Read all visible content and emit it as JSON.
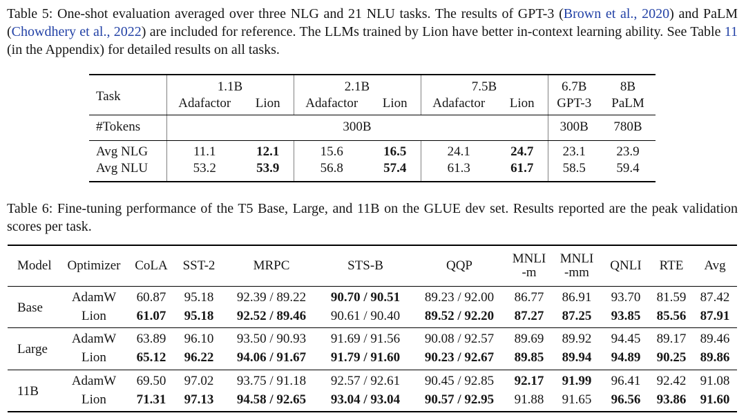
{
  "colors": {
    "link_blue": "#2342a6",
    "text": "#161616",
    "rule": "#000000",
    "divider_gray": "#808080"
  },
  "caption_table5": {
    "segments": [
      {
        "text": "Table 5: One-shot evaluation averaged over three NLG and 21 NLU tasks. The results of GPT-3 (",
        "link": false
      },
      {
        "text": "Brown et al., 2020",
        "link": true
      },
      {
        "text": ") and PaLM (",
        "link": false
      },
      {
        "text": "Chowdhery et al., 2022",
        "link": true
      },
      {
        "text": ") are included for reference. The LLMs trained by Lion have better in-context learning ability. See Table ",
        "link": false
      },
      {
        "text": "11",
        "link": true
      },
      {
        "text": " (in the Appendix) for detailed results on all tasks.",
        "link": false
      }
    ]
  },
  "table5": {
    "task_label": "Task",
    "header_groups": [
      {
        "size": "1.1B",
        "cols": [
          "Adafactor",
          "Lion"
        ]
      },
      {
        "size": "2.1B",
        "cols": [
          "Adafactor",
          "Lion"
        ]
      },
      {
        "size": "7.5B",
        "cols": [
          "Adafactor",
          "Lion"
        ]
      },
      {
        "size": "6.7B",
        "cols": [
          "GPT-3"
        ]
      },
      {
        "size": "8B",
        "cols": [
          "PaLM"
        ]
      }
    ],
    "tokens_row": {
      "label": "#Tokens",
      "span_value": "300B",
      "gpt3": "300B",
      "palm": "780B"
    },
    "rows": [
      {
        "label": "Avg NLG",
        "values": [
          "11.1",
          "12.1",
          "15.6",
          "16.5",
          "24.1",
          "24.7",
          "23.1",
          "23.9"
        ],
        "bold": [
          false,
          true,
          false,
          true,
          false,
          true,
          false,
          false
        ]
      },
      {
        "label": "Avg NLU",
        "values": [
          "53.2",
          "53.9",
          "56.8",
          "57.4",
          "61.3",
          "61.7",
          "58.5",
          "59.4"
        ],
        "bold": [
          false,
          true,
          false,
          true,
          false,
          true,
          false,
          false
        ]
      }
    ]
  },
  "caption_table6": {
    "segments": [
      {
        "text": "Table 6: Fine-tuning performance of the T5 Base, Large, and 11B on the GLUE dev set. Results reported are the peak validation scores per task.",
        "link": false
      }
    ]
  },
  "table6": {
    "columns": [
      {
        "line1": "Model"
      },
      {
        "line1": "Optimizer"
      },
      {
        "line1": "CoLA"
      },
      {
        "line1": "SST-2"
      },
      {
        "line1": "MRPC"
      },
      {
        "line1": "STS-B"
      },
      {
        "line1": "QQP"
      },
      {
        "line1": "MNLI",
        "line2": "-m"
      },
      {
        "line1": "MNLI",
        "line2": "-mm"
      },
      {
        "line1": "QNLI"
      },
      {
        "line1": "RTE"
      },
      {
        "line1": "Avg"
      }
    ],
    "groups": [
      {
        "model": "Base",
        "rows": [
          {
            "optimizer": "AdamW",
            "values": [
              "60.87",
              "95.18",
              "92.39 / 89.22",
              "90.70 / 90.51",
              "89.23 / 92.00",
              "86.77",
              "86.91",
              "93.70",
              "81.59",
              "87.42"
            ],
            "bold": [
              false,
              false,
              false,
              true,
              false,
              false,
              false,
              false,
              false,
              false
            ]
          },
          {
            "optimizer": "Lion",
            "values": [
              "61.07",
              "95.18",
              "92.52 / 89.46",
              "90.61 / 90.40",
              "89.52 / 92.20",
              "87.27",
              "87.25",
              "93.85",
              "85.56",
              "87.91"
            ],
            "bold": [
              true,
              true,
              true,
              false,
              true,
              true,
              true,
              true,
              true,
              true
            ]
          }
        ]
      },
      {
        "model": "Large",
        "rows": [
          {
            "optimizer": "AdamW",
            "values": [
              "63.89",
              "96.10",
              "93.50 / 90.93",
              "91.69 / 91.56",
              "90.08 / 92.57",
              "89.69",
              "89.92",
              "94.45",
              "89.17",
              "89.46"
            ],
            "bold": [
              false,
              false,
              false,
              false,
              false,
              false,
              false,
              false,
              false,
              false
            ]
          },
          {
            "optimizer": "Lion",
            "values": [
              "65.12",
              "96.22",
              "94.06 / 91.67",
              "91.79 / 91.60",
              "90.23 / 92.67",
              "89.85",
              "89.94",
              "94.89",
              "90.25",
              "89.86"
            ],
            "bold": [
              true,
              true,
              true,
              true,
              true,
              true,
              true,
              true,
              true,
              true
            ]
          }
        ]
      },
      {
        "model": "11B",
        "rows": [
          {
            "optimizer": "AdamW",
            "values": [
              "69.50",
              "97.02",
              "93.75 / 91.18",
              "92.57 / 92.61",
              "90.45 / 92.85",
              "92.17",
              "91.99",
              "96.41",
              "92.42",
              "91.08"
            ],
            "bold": [
              false,
              false,
              false,
              false,
              false,
              true,
              true,
              false,
              false,
              false
            ]
          },
          {
            "optimizer": "Lion",
            "values": [
              "71.31",
              "97.13",
              "94.58 / 92.65",
              "93.04 / 93.04",
              "90.57 / 92.95",
              "91.88",
              "91.65",
              "96.56",
              "93.86",
              "91.60"
            ],
            "bold": [
              true,
              true,
              true,
              true,
              true,
              false,
              false,
              true,
              true,
              true
            ]
          }
        ]
      }
    ]
  }
}
